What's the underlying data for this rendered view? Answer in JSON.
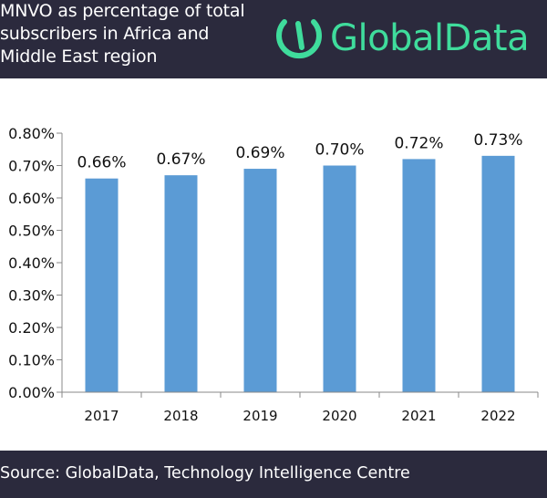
{
  "header": {
    "title_lines": [
      "MNVO as percentage of total",
      "subscribers in Africa and",
      "Middle East region"
    ],
    "logo_text": "GlobalData"
  },
  "colors": {
    "header_bg": "#2b2a3d",
    "bar": "#5b9bd5",
    "logo": "#3fdc9c",
    "axis": "#888888"
  },
  "icons": {
    "logo": "globaldata-logo-icon"
  },
  "chart_data": {
    "type": "bar",
    "categories": [
      "2017",
      "2018",
      "2019",
      "2020",
      "2021",
      "2022"
    ],
    "values": [
      0.66,
      0.67,
      0.69,
      0.7,
      0.72,
      0.73
    ],
    "data_labels": [
      "0.66%",
      "0.67%",
      "0.69%",
      "0.70%",
      "0.72%",
      "0.73%"
    ],
    "yticks": [
      0,
      0.1,
      0.2,
      0.3,
      0.4,
      0.5,
      0.6,
      0.7,
      0.8
    ],
    "ytick_labels": [
      "0.00%",
      "0.10%",
      "0.20%",
      "0.30%",
      "0.40%",
      "0.50%",
      "0.60%",
      "0.70%",
      "0.80%"
    ],
    "ylim": [
      0,
      0.8
    ],
    "title": "",
    "xlabel": "",
    "ylabel": "",
    "grid": false,
    "legend": "none"
  },
  "footer": {
    "source": "Source: GlobalData, Technology Intelligence Centre"
  }
}
